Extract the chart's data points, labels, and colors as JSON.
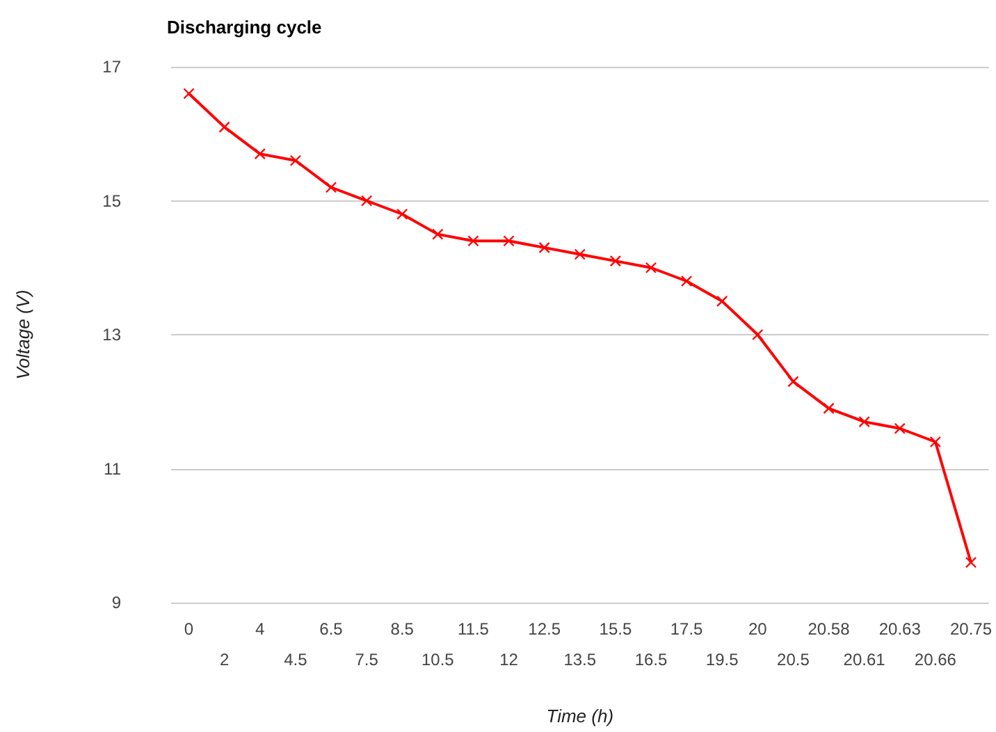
{
  "chart_data": {
    "type": "line",
    "title": "Discharging cycle",
    "xlabel": "Time (h)",
    "ylabel": "Voltage (V)",
    "categories": [
      "0",
      "2",
      "4",
      "4.5",
      "6.5",
      "7.5",
      "8.5",
      "10.5",
      "11.5",
      "12",
      "12.5",
      "13.5",
      "15.5",
      "16.5",
      "17.5",
      "19.5",
      "20",
      "20.5",
      "20.58",
      "20.61",
      "20.63",
      "20.66",
      "20.75"
    ],
    "series": [
      {
        "color": "#ff0000",
        "values": [
          16.6,
          16.1,
          15.7,
          15.6,
          15.2,
          15.0,
          14.8,
          14.5,
          14.4,
          14.4,
          14.3,
          14.2,
          14.1,
          14.0,
          13.8,
          13.5,
          13.0,
          12.3,
          11.9,
          11.7,
          11.6,
          11.4,
          9.6
        ]
      }
    ],
    "ylim": [
      9,
      17
    ],
    "yticks": [
      9,
      11,
      13,
      15,
      17
    ],
    "grid": "y",
    "marker": "cross"
  }
}
